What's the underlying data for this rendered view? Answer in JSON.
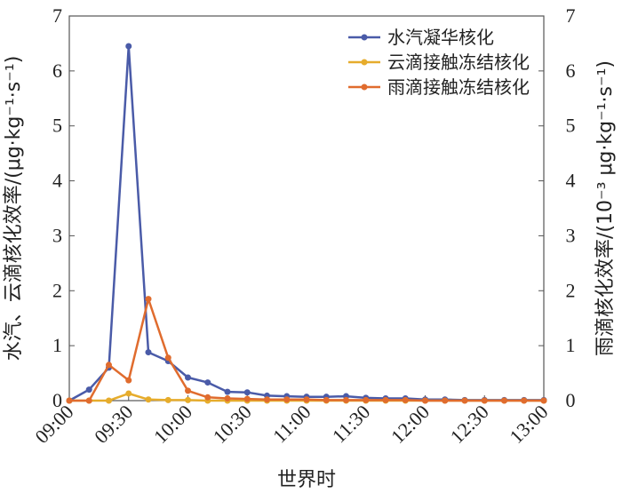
{
  "chart_data": {
    "type": "line",
    "x": [
      "09:00",
      "09:10",
      "09:20",
      "09:30",
      "09:40",
      "09:50",
      "10:00",
      "10:10",
      "10:20",
      "10:30",
      "10:40",
      "10:50",
      "11:00",
      "11:10",
      "11:20",
      "11:30",
      "11:40",
      "11:50",
      "12:00",
      "12:10",
      "12:20",
      "12:30",
      "12:40",
      "12:50",
      "13:00"
    ],
    "x_tick_labels": [
      "09:00",
      "09:30",
      "10:00",
      "10:30",
      "11:00",
      "11:30",
      "12:00",
      "12:30",
      "13:00"
    ],
    "series": [
      {
        "name": "水汽凝华核化",
        "axis": "left",
        "color": "#4a5ba8",
        "values": [
          0,
          0.2,
          0.6,
          6.45,
          0.88,
          0.72,
          0.42,
          0.33,
          0.16,
          0.15,
          0.09,
          0.08,
          0.07,
          0.07,
          0.08,
          0.05,
          0.04,
          0.04,
          0.02,
          0.02,
          0.01,
          0.01,
          0.01,
          0.01,
          0.01
        ]
      },
      {
        "name": "云滴接触冻结核化",
        "axis": "left",
        "color": "#e6ac2c",
        "values": [
          0,
          0,
          0,
          0.13,
          0.02,
          0.01,
          0.01,
          0,
          0,
          0,
          0,
          0,
          0,
          0,
          0,
          0,
          0,
          0,
          0,
          0,
          0,
          0,
          0,
          0,
          0
        ]
      },
      {
        "name": "雨滴接触冻结核化",
        "axis": "right",
        "color": "#e06c2e",
        "values": [
          0,
          0,
          0.65,
          0.37,
          1.85,
          0.78,
          0.18,
          0.06,
          0.04,
          0.03,
          0.02,
          0.02,
          0.02,
          0.01,
          0.01,
          0.01,
          0.01,
          0.01,
          0,
          0,
          0,
          0,
          0,
          0,
          0
        ]
      }
    ],
    "xlabel": "世界时",
    "ylabel_left": "水汽、云滴核化效率/(μg·kg⁻¹·s⁻¹)",
    "ylabel_right": "雨滴核化效率/(10⁻³ μg·kg⁻¹·s⁻¹)",
    "ylim": [
      0,
      7
    ],
    "y_ticks": [
      0,
      1,
      2,
      3,
      4,
      5,
      6,
      7
    ],
    "legend_position": "top-right",
    "grid": false
  }
}
